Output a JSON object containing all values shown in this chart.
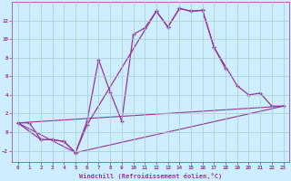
{
  "xlabel": "Windchill (Refroidissement éolien,°C)",
  "background_color": "#cceeff",
  "grid_color": "#aacccc",
  "line_color": "#993399",
  "xlim": [
    -0.5,
    23.5
  ],
  "ylim": [
    -3.2,
    14.0
  ],
  "xticks": [
    0,
    1,
    2,
    3,
    4,
    5,
    6,
    7,
    8,
    9,
    10,
    11,
    12,
    13,
    14,
    15,
    16,
    17,
    18,
    19,
    20,
    21,
    22,
    23
  ],
  "yticks": [
    -2,
    0,
    2,
    4,
    6,
    8,
    10,
    12
  ],
  "line1_x": [
    0,
    1,
    2,
    3,
    4,
    5,
    6,
    7,
    8,
    9,
    10,
    11,
    12,
    13,
    14,
    15,
    16,
    17,
    18
  ],
  "line1_y": [
    1.0,
    1.0,
    -0.8,
    -0.8,
    -1.0,
    -2.2,
    1.2,
    7.8,
    4.3,
    1.2,
    10.5,
    11.2,
    13.0,
    11.3,
    13.3,
    13.0,
    13.1,
    9.1,
    6.8
  ],
  "line2_x": [
    0,
    2,
    3,
    4,
    5,
    6,
    12,
    13,
    14,
    15,
    16,
    17,
    19,
    20,
    21,
    22,
    23
  ],
  "line2_y": [
    1.0,
    -0.8,
    -0.8,
    -1.0,
    -2.2,
    0.8,
    13.0,
    11.3,
    13.3,
    13.0,
    13.1,
    9.1,
    5.0,
    4.0,
    4.2,
    2.8,
    2.8
  ],
  "line3_x": [
    0,
    23
  ],
  "line3_y": [
    1.0,
    2.8
  ],
  "line4_x": [
    0,
    5,
    23
  ],
  "line4_y": [
    1.0,
    -2.2,
    2.8
  ]
}
